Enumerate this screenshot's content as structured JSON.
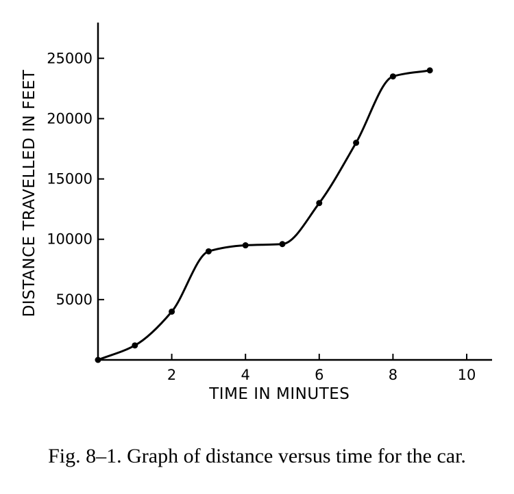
{
  "chart_data": {
    "type": "line",
    "xlabel": "TIME IN MINUTES",
    "ylabel": "DISTANCE TRAVELLED IN FEET",
    "xlim": [
      0,
      10.7
    ],
    "ylim": [
      0,
      27500
    ],
    "xticks": [
      2,
      4,
      6,
      8,
      10
    ],
    "yticks": [
      5000,
      10000,
      15000,
      20000,
      25000
    ],
    "series": [
      {
        "points": [
          {
            "x": 0,
            "y": 0
          },
          {
            "x": 1,
            "y": 1200
          },
          {
            "x": 2,
            "y": 4000
          },
          {
            "x": 3,
            "y": 9000
          },
          {
            "x": 4,
            "y": 9500
          },
          {
            "x": 5,
            "y": 9600
          },
          {
            "x": 6,
            "y": 13000
          },
          {
            "x": 7,
            "y": 18000
          },
          {
            "x": 8,
            "y": 23500
          },
          {
            "x": 9,
            "y": 24000
          }
        ]
      }
    ],
    "grid": false,
    "legend": "none"
  },
  "caption": "Fig. 8–1.  Graph of distance versus time for the car."
}
